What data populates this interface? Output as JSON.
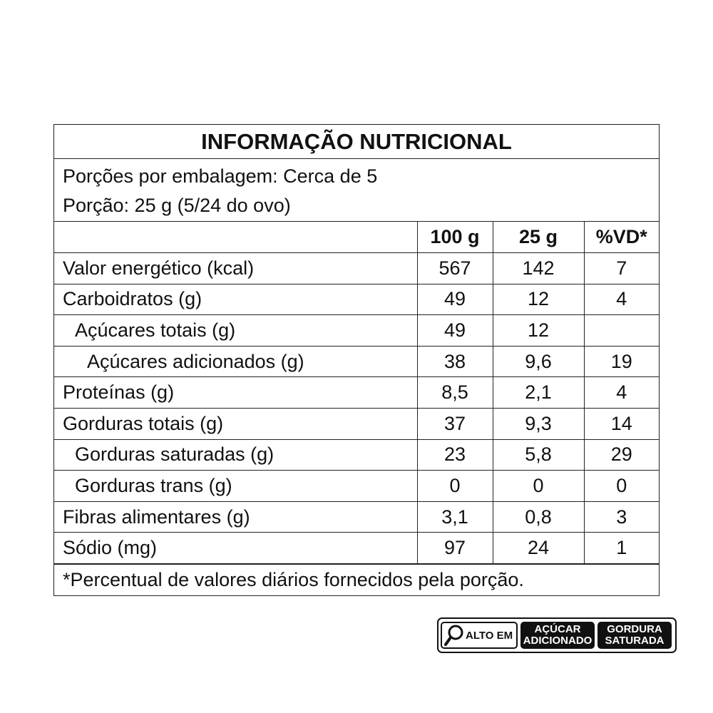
{
  "title": "INFORMAÇÃO NUTRICIONAL",
  "servings_per_package": "Porções por embalagem: Cerca de 5",
  "serving_size": "Porção: 25 g (5/24 do ovo)",
  "columns": [
    "",
    "100 g",
    "25 g",
    "%VD*"
  ],
  "rows": [
    {
      "label": "Valor energético (kcal)",
      "indent": 0,
      "per100": "567",
      "perServing": "142",
      "dv": "7"
    },
    {
      "label": "Carboidratos (g)",
      "indent": 0,
      "per100": "49",
      "perServing": "12",
      "dv": "4"
    },
    {
      "label": "Açúcares totais (g)",
      "indent": 1,
      "per100": "49",
      "perServing": "12",
      "dv": ""
    },
    {
      "label": "Açúcares adicionados (g)",
      "indent": 2,
      "per100": "38",
      "perServing": "9,6",
      "dv": "19"
    },
    {
      "label": "Proteínas (g)",
      "indent": 0,
      "per100": "8,5",
      "perServing": "2,1",
      "dv": "4"
    },
    {
      "label": "Gorduras totais (g)",
      "indent": 0,
      "per100": "37",
      "perServing": "9,3",
      "dv": "14"
    },
    {
      "label": "Gorduras saturadas (g)",
      "indent": 1,
      "per100": "23",
      "perServing": "5,8",
      "dv": "29"
    },
    {
      "label": "Gorduras trans (g)",
      "indent": 1,
      "per100": "0",
      "perServing": "0",
      "dv": "0"
    },
    {
      "label": "Fibras alimentares (g)",
      "indent": 0,
      "per100": "3,1",
      "perServing": "0,8",
      "dv": "3"
    },
    {
      "label": "Sódio (mg)",
      "indent": 0,
      "per100": "97",
      "perServing": "24",
      "dv": "1"
    }
  ],
  "footnote": "*Percentual de valores diários fornecidos pela porção.",
  "warning": {
    "icon": "magnifier-icon",
    "alto_em": "ALTO EM",
    "items": [
      {
        "line1": "AÇÚCAR",
        "line2": "ADICIONADO"
      },
      {
        "line1": "GORDURA",
        "line2": "SATURADA"
      }
    ]
  }
}
